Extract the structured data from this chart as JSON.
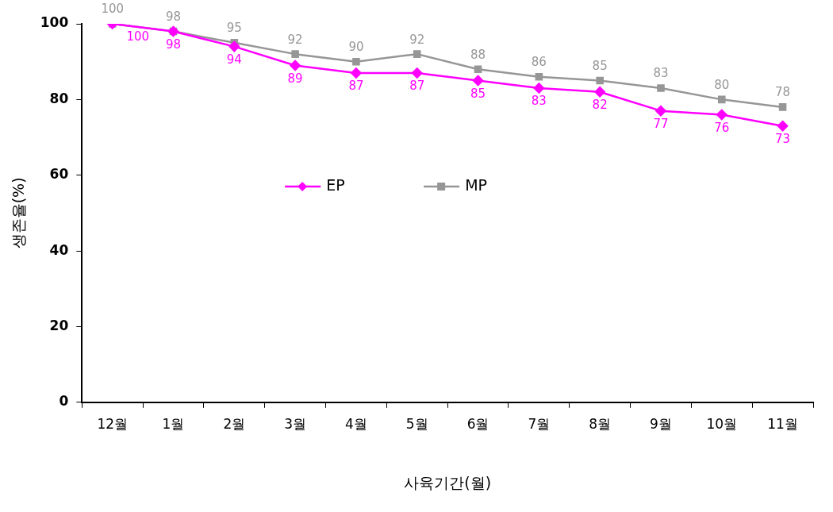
{
  "chart_data": {
    "type": "line",
    "xlabel": "사육기간(월)",
    "ylabel": "생존율(%)",
    "categories": [
      "12월",
      "1월",
      "2월",
      "3월",
      "4월",
      "5월",
      "6월",
      "7월",
      "8월",
      "9월",
      "10월",
      "11월"
    ],
    "ylim": [
      0,
      100
    ],
    "yticks": [
      0,
      20,
      40,
      60,
      80,
      100
    ],
    "series": [
      {
        "name": "EP",
        "color": "#ff00ff",
        "marker": "diamond",
        "values": [
          100,
          98,
          94,
          89,
          87,
          87,
          85,
          83,
          82,
          77,
          76,
          73
        ]
      },
      {
        "name": "MP",
        "color": "#969696",
        "marker": "square",
        "values": [
          100,
          98,
          95,
          92,
          90,
          92,
          88,
          86,
          85,
          83,
          80,
          78
        ]
      }
    ],
    "data_labels": true,
    "legend": "center",
    "grid": false
  }
}
